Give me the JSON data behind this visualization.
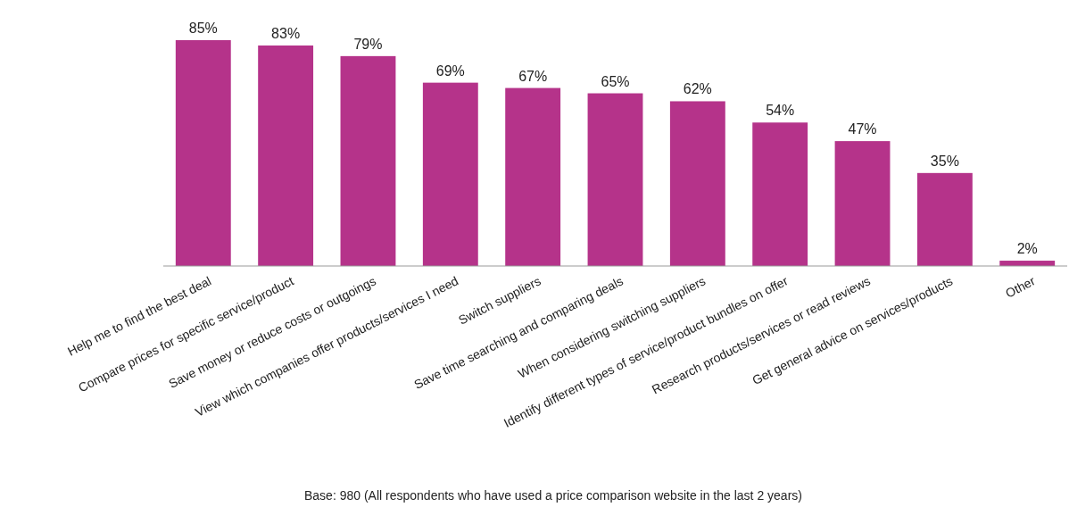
{
  "chart_data": {
    "type": "bar",
    "categories": [
      "Help me to find the best deal",
      "Compare prices for specific service/product",
      "Save money or reduce costs or outgoings",
      "View which companies offer products/services I need",
      "Switch suppliers",
      "Save time searching and comparing deals",
      "When considering switching suppliers",
      "Identify different types of service/product bundles on offer",
      "Research products/services or read reviews",
      "Get general advice on services/products",
      "Other"
    ],
    "values": [
      85,
      83,
      79,
      69,
      67,
      65,
      62,
      54,
      47,
      35,
      2
    ],
    "value_labels": [
      "85%",
      "83%",
      "79%",
      "69%",
      "67%",
      "65%",
      "62%",
      "54%",
      "47%",
      "35%",
      "2%"
    ],
    "color": "#b5338a",
    "annotations": [
      "Base: 980 (All respondents who have used a price comparison website in the last 2 years)"
    ]
  }
}
